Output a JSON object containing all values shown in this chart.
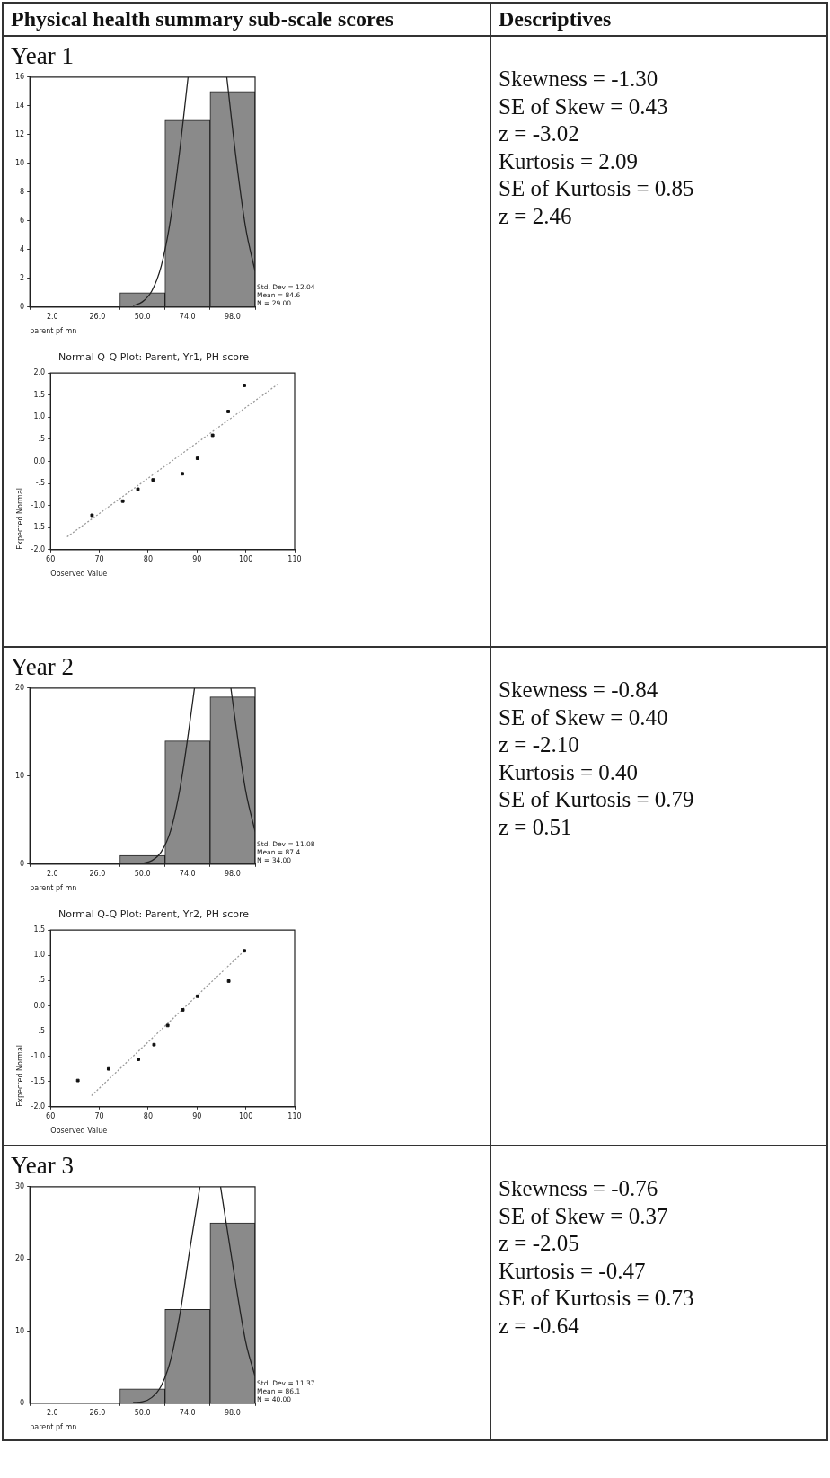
{
  "chart_data": [
    {
      "type": "other",
      "title": "Physical health summary sub-scale scores"
    },
    {
      "type": "other",
      "title": "Descriptives"
    },
    {
      "type": "histogram",
      "title": "Year 1",
      "xlabel": "parent pf mn",
      "xlim": [
        -10,
        110
      ],
      "xticks": [
        {
          "value": 2,
          "label": "2.0"
        },
        {
          "value": 26,
          "label": "26.0"
        },
        {
          "value": 50,
          "label": "50.0"
        },
        {
          "value": 74,
          "label": "74.0"
        },
        {
          "value": 98,
          "label": "98.0"
        }
      ],
      "ylim": [
        0,
        16
      ],
      "yticks": [
        0,
        2,
        4,
        6,
        8,
        10,
        12,
        14,
        16
      ],
      "annotations": [
        "Std. Dev = 12.04",
        "Mean = 84.6",
        "N = 29.00"
      ],
      "series": [
        {
          "type": "histogram",
          "color": "#8a8a8a",
          "bins": [
            -10,
            14,
            38,
            62,
            86,
            110
          ],
          "values": [
            0,
            0,
            1,
            13,
            15
          ]
        },
        {
          "type": "line",
          "color": "#222222",
          "x": [
            45,
            50,
            55,
            60,
            65,
            70,
            73,
            74.3,
            84.6,
            94.9,
            100,
            105,
            110
          ],
          "values": [
            0.1,
            0.37,
            1.13,
            2.86,
            6.13,
            11.05,
            14.5,
            16,
            null,
            16,
            10.2,
            5.49,
            2.49
          ]
        }
      ]
    },
    {
      "type": "scatter",
      "title": "Normal Q-Q Plot: Parent, Yr1, PH score",
      "xlabel": "Observed Value",
      "ylabel": "Expected Normal",
      "xlim": [
        60,
        110
      ],
      "xticks": [
        60,
        70,
        80,
        90,
        100,
        110
      ],
      "ylim": [
        -2,
        2
      ],
      "yticks": [
        {
          "value": 2,
          "label": "2.0"
        },
        {
          "value": 1.5,
          "label": "1.5"
        },
        {
          "value": 1,
          "label": "1.0"
        },
        {
          "value": 0.5,
          "label": ".5"
        },
        {
          "value": 0,
          "label": "0.0"
        },
        {
          "value": -0.5,
          "label": "-.5"
        },
        {
          "value": -1,
          "label": "-1.0"
        },
        {
          "value": -1.5,
          "label": "-1.5"
        },
        {
          "value": -2,
          "label": "-2.0"
        }
      ],
      "series": [
        {
          "type": "scatter",
          "color": "#111111",
          "marker": "square",
          "x": [
            68.5,
            74.8,
            77.9,
            81,
            87,
            90.1,
            93.2,
            96.4,
            99.7
          ],
          "values": [
            -1.22,
            -0.9,
            -0.63,
            -0.42,
            -0.28,
            0.07,
            0.59,
            1.13,
            1.72
          ]
        },
        {
          "type": "line",
          "color": "#9a9a9a",
          "line_style": "dotted",
          "x": [
            63.4,
            106.6
          ],
          "values": [
            -1.71,
            1.75
          ]
        }
      ]
    },
    {
      "type": "other",
      "annotations": [
        "Skewness = -1.30",
        "SE of Skew = 0.43",
        "z = -3.02",
        "Kurtosis = 2.09",
        "SE of Kurtosis = 0.85",
        "z = 2.46"
      ]
    },
    {
      "type": "histogram",
      "title": "Year 2",
      "xlabel": "parent pf mn",
      "xlim": [
        -10,
        110
      ],
      "xticks": [
        {
          "value": 2,
          "label": "2.0"
        },
        {
          "value": 26,
          "label": "26.0"
        },
        {
          "value": 50,
          "label": "50.0"
        },
        {
          "value": 74,
          "label": "74.0"
        },
        {
          "value": 98,
          "label": "98.0"
        }
      ],
      "ylim": [
        0,
        20
      ],
      "yticks": [
        0,
        10,
        20
      ],
      "annotations": [
        "Std. Dev = 11.08",
        "Mean = 87.4",
        "N = 34.00"
      ],
      "series": [
        {
          "type": "histogram",
          "color": "#8a8a8a",
          "bins": [
            -10,
            14,
            38,
            62,
            86,
            110
          ],
          "values": [
            0,
            0,
            1,
            14,
            19
          ]
        },
        {
          "type": "line",
          "color": "#222222",
          "x": [
            50,
            55,
            60,
            65,
            70,
            75,
            77.7,
            87.4,
            97.1,
            100,
            105,
            110
          ],
          "values": [
            0.1,
            0.4,
            1.4,
            3.8,
            8.6,
            15.7,
            20,
            null,
            20,
            15.4,
            8.3,
            3.7
          ]
        }
      ]
    },
    {
      "type": "scatter",
      "title": "Normal Q-Q Plot: Parent, Yr2, PH score",
      "xlabel": "Observed Value",
      "ylabel": "Expected Normal",
      "xlim": [
        60,
        110
      ],
      "xticks": [
        60,
        70,
        80,
        90,
        100,
        110
      ],
      "ylim": [
        -2,
        1.5
      ],
      "yticks": [
        {
          "value": 1.5,
          "label": "1.5"
        },
        {
          "value": 1,
          "label": "1.0"
        },
        {
          "value": 0.5,
          "label": ".5"
        },
        {
          "value": 0,
          "label": "0.0"
        },
        {
          "value": -0.5,
          "label": "-.5"
        },
        {
          "value": -1,
          "label": "-1.0"
        },
        {
          "value": -1.5,
          "label": "-1.5"
        },
        {
          "value": -2,
          "label": "-2.0"
        }
      ],
      "series": [
        {
          "type": "scatter",
          "color": "#111111",
          "marker": "square",
          "x": [
            65.6,
            71.9,
            78,
            81.2,
            84,
            87.1,
            90.1,
            96.5,
            99.7
          ],
          "values": [
            -1.48,
            -1.25,
            -1.06,
            -0.77,
            -0.39,
            -0.08,
            0.19,
            0.49,
            1.09
          ]
        },
        {
          "type": "line",
          "color": "#9a9a9a",
          "line_style": "dotted",
          "x": [
            68.4,
            99.7
          ],
          "values": [
            -1.78,
            1.09
          ]
        }
      ]
    },
    {
      "type": "other",
      "annotations": [
        "Skewness = -0.84",
        "SE of Skew = 0.40",
        "z = -2.10",
        "Kurtosis = 0.40",
        "SE of Kurtosis = 0.79",
        "z = 0.51"
      ]
    },
    {
      "type": "histogram",
      "title": "Year 3",
      "xlabel": "parent pf mn",
      "xlim": [
        -10,
        110
      ],
      "xticks": [
        {
          "value": 2,
          "label": "2.0"
        },
        {
          "value": 26,
          "label": "26.0"
        },
        {
          "value": 50,
          "label": "50.0"
        },
        {
          "value": 74,
          "label": "74.0"
        },
        {
          "value": 98,
          "label": "98.0"
        }
      ],
      "ylim": [
        0,
        30
      ],
      "yticks": [
        0,
        10,
        20,
        30
      ],
      "annotations": [
        "Std. Dev = 11.37",
        "Mean = 86.1",
        "N = 40.00"
      ],
      "series": [
        {
          "type": "histogram",
          "color": "#8a8a8a",
          "bins": [
            -10,
            14,
            38,
            62,
            86,
            110
          ],
          "values": [
            0,
            0,
            2,
            13,
            25
          ]
        },
        {
          "type": "line",
          "color": "#222222",
          "x": [
            45,
            50,
            55,
            60,
            65,
            70,
            75,
            80.6,
            86.1,
            91.6,
            100,
            105,
            110
          ],
          "values": [
            0.1,
            0.2,
            0.8,
            2.4,
            6,
            12.4,
            20.9,
            30,
            null,
            30,
            16,
            8.5,
            3.7
          ]
        }
      ]
    },
    {
      "type": "other",
      "annotations": [
        "Skewness = -0.76",
        "SE of Skew = 0.37",
        "z = -2.05",
        "Kurtosis = -0.47",
        "SE of Kurtosis = 0.73",
        "z = -0.64"
      ]
    }
  ]
}
